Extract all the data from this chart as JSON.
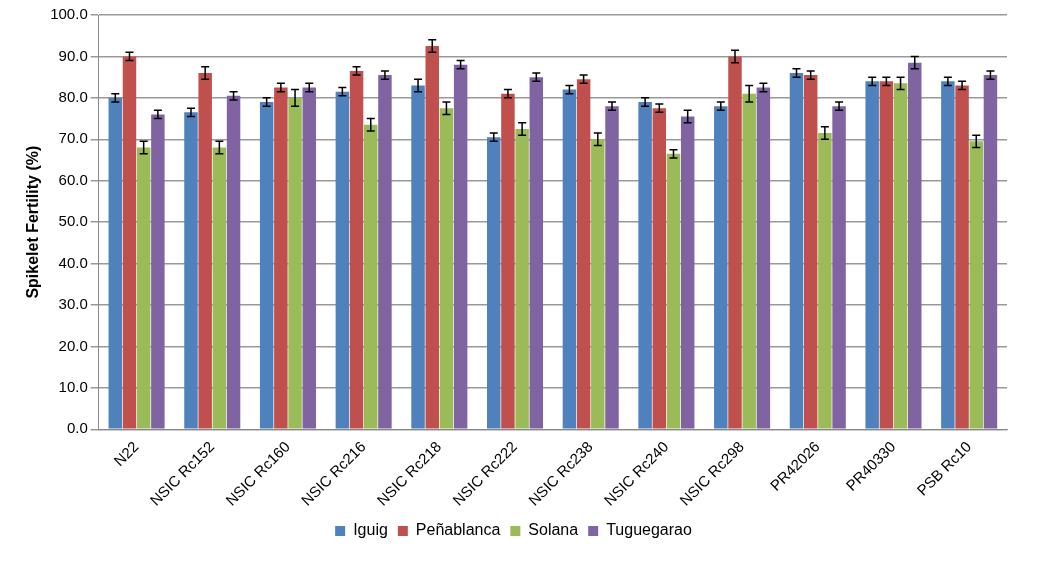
{
  "chart_data": {
    "type": "bar",
    "ylabel": "Spikelet Fertility (%)",
    "categories": [
      "N22",
      "NSIC Rc152",
      "NSIC Rc160",
      "NSIC Rc216",
      "NSIC Rc218",
      "NSIC Rc222",
      "NSIC Rc238",
      "NSIC Rc240",
      "NSIC Rc298",
      "PR42026",
      "PR40330",
      "PSB Rc10"
    ],
    "series": [
      {
        "name": "Iguig",
        "color": "#4f81bd",
        "values": [
          80,
          76.5,
          79,
          81.5,
          83,
          70.5,
          82,
          79,
          78,
          86,
          84,
          84
        ],
        "errors": [
          1,
          1,
          1,
          1,
          1.5,
          1,
          1,
          1,
          1,
          1,
          1,
          1
        ]
      },
      {
        "name": "Peñablanca",
        "color": "#c0504d",
        "values": [
          90,
          86,
          82.5,
          86.5,
          92.5,
          81,
          84.5,
          77.5,
          90,
          85.5,
          84,
          83
        ],
        "errors": [
          1,
          1.5,
          1,
          1,
          1.5,
          1,
          1,
          1,
          1.5,
          1,
          1,
          1
        ]
      },
      {
        "name": "Solana",
        "color": "#9bbb59",
        "values": [
          68,
          68,
          80,
          73.5,
          77.5,
          72.5,
          70,
          66.5,
          81,
          71.5,
          83.5,
          69.5
        ],
        "errors": [
          1.5,
          1.5,
          2,
          1.5,
          1.5,
          1.5,
          1.5,
          1,
          2,
          1.5,
          1.5,
          1.5
        ]
      },
      {
        "name": "Tuguegarao",
        "color": "#8064a2",
        "values": [
          76,
          80.5,
          82.5,
          85.5,
          88,
          85,
          78,
          75.5,
          82.5,
          78,
          88.5,
          85.5
        ],
        "errors": [
          1,
          1,
          1,
          1,
          1,
          1,
          1,
          1.5,
          1,
          1,
          1.5,
          1
        ]
      }
    ],
    "ylim": [
      0,
      100
    ],
    "yticks": [
      {
        "value": 0,
        "label": "0.0"
      },
      {
        "value": 10,
        "label": "10.0"
      },
      {
        "value": 20,
        "label": "20.0"
      },
      {
        "value": 30,
        "label": "30.0"
      },
      {
        "value": 40,
        "label": "40.0"
      },
      {
        "value": 50,
        "label": "50.0"
      },
      {
        "value": 60,
        "label": "60.0"
      },
      {
        "value": 70,
        "label": "70.0"
      },
      {
        "value": 80,
        "label": "80.0"
      },
      {
        "value": 90,
        "label": "90.0"
      },
      {
        "value": 100,
        "label": "100.0"
      }
    ],
    "grid": "y",
    "legend": "bottom"
  }
}
